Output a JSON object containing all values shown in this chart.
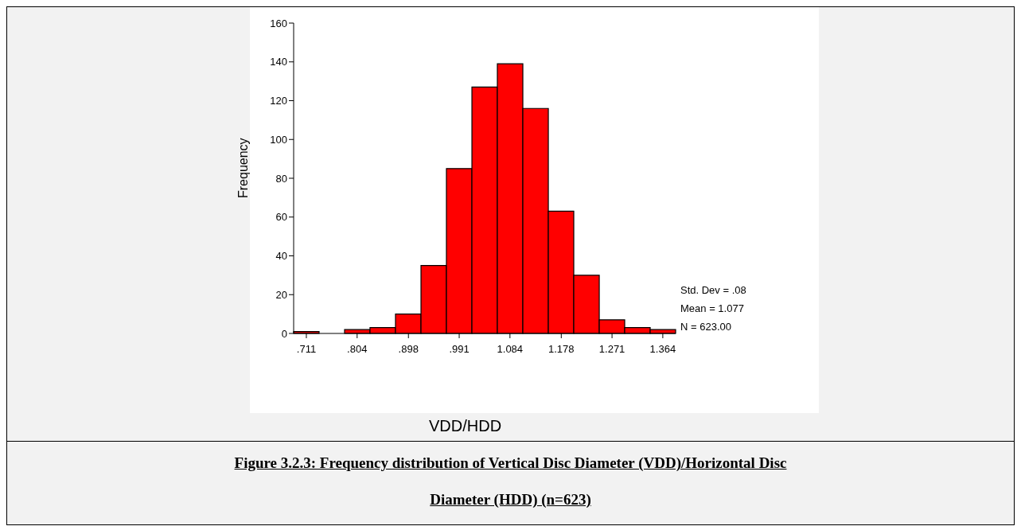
{
  "chart_data": {
    "type": "histogram",
    "title": "Figure 3.2.3: Frequency distribution of Vertical Disc Diameter (VDD)/Horizontal Disc Diameter (HDD) (n=623)",
    "xlabel": "VDD/HDD",
    "ylabel": "Frequency",
    "bins": [
      0.6877,
      0.7343,
      0.781,
      0.8276,
      0.8743,
      0.921,
      0.9676,
      1.0143,
      1.0609,
      1.1076,
      1.1543,
      1.2009,
      1.2476,
      1.2942,
      1.3409,
      1.3875
    ],
    "values": [
      1,
      0,
      2,
      3,
      10,
      35,
      85,
      127,
      139,
      116,
      63,
      30,
      7,
      3,
      2
    ],
    "color": "#ff0000",
    "xlim": [
      0.6877,
      1.3875
    ],
    "xticks": [
      {
        "value": 0.711,
        "label": ".711"
      },
      {
        "value": 0.804,
        "label": ".804"
      },
      {
        "value": 0.898,
        "label": ".898"
      },
      {
        "value": 0.991,
        "label": ".991"
      },
      {
        "value": 1.084,
        "label": "1.084"
      },
      {
        "value": 1.178,
        "label": "1.178"
      },
      {
        "value": 1.271,
        "label": "1.271"
      },
      {
        "value": 1.364,
        "label": "1.364"
      }
    ],
    "ylim": [
      0,
      160
    ],
    "yticks": [
      0,
      20,
      40,
      60,
      80,
      100,
      120,
      140,
      160
    ],
    "grid": false,
    "annotations": [
      "Std. Dev = .08",
      "Mean = 1.077",
      "N = 623.00"
    ]
  }
}
